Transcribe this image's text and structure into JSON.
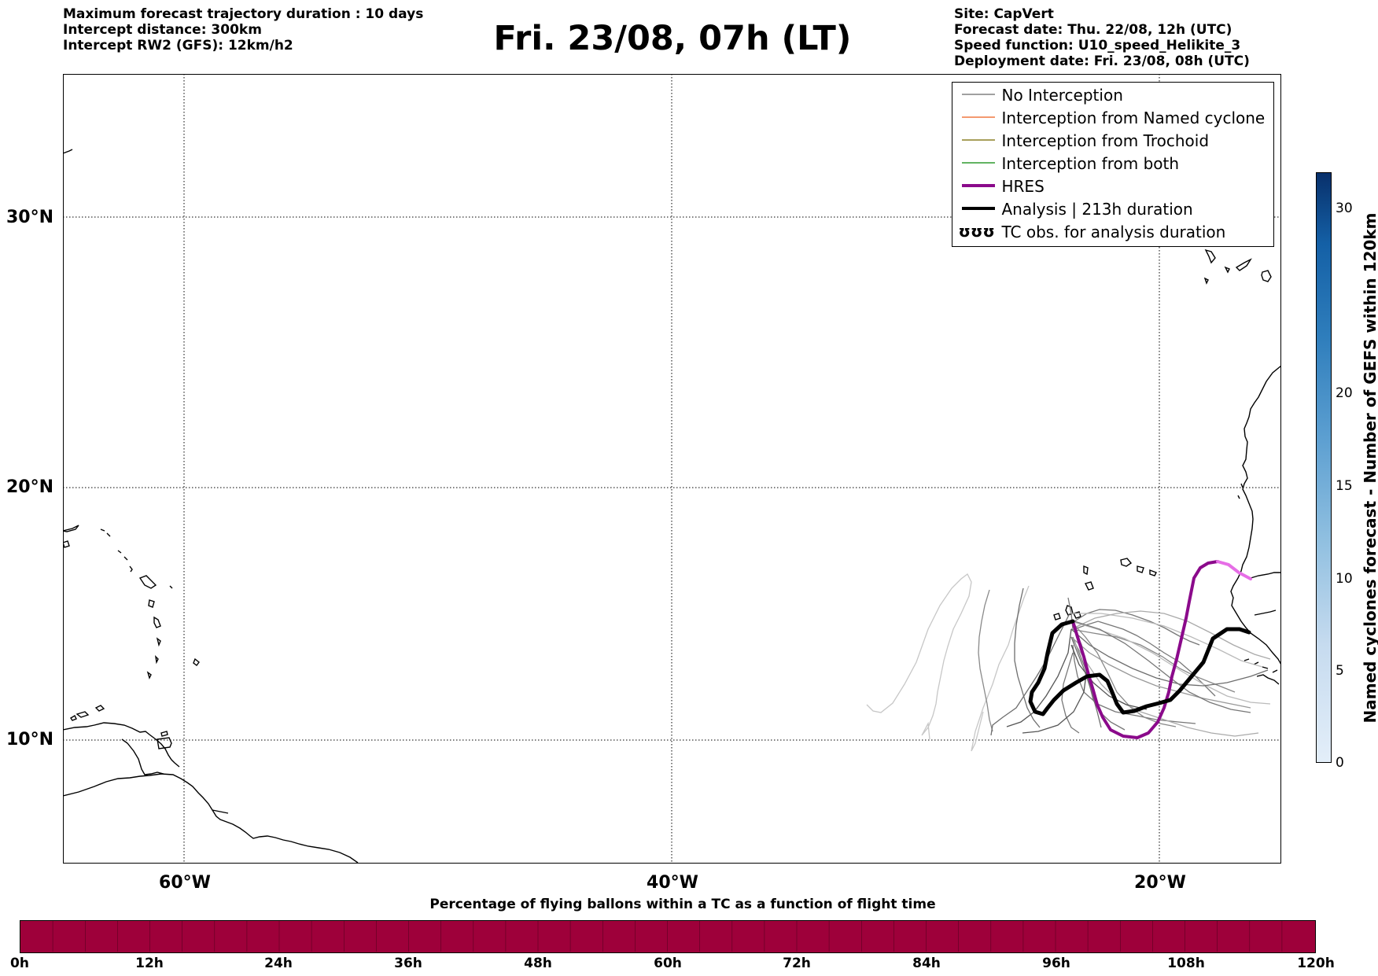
{
  "header_left": [
    "Maximum forecast trajectory duration : 10 days",
    "Intercept distance: 300km",
    "Intercept RW2 (GFS):  12km/h2"
  ],
  "title": "Fri. 23/08, 07h (LT)",
  "header_right": [
    "Site: CapVert",
    "Forecast date: Thu. 22/08, 12h (UTC)",
    "Speed function: U10_speed_Helikite_3",
    "Deployment date: Fri. 23/08, 08h (UTC)"
  ],
  "map": {
    "lat_labels": [
      "30°N",
      "20°N",
      "10°N"
    ],
    "lon_labels": [
      "60°W",
      "40°W",
      "20°W"
    ],
    "gridline_style": "dotted",
    "extent": {
      "lon_min": -65,
      "lon_max": -15,
      "lat_min": 5.4,
      "lat_max": 35.3
    }
  },
  "legend": [
    {
      "label": "No Interception",
      "color": "#808080",
      "style": "thin-line"
    },
    {
      "label": "Interception from Named cyclone",
      "color": "#f07840",
      "style": "thin-line"
    },
    {
      "label": "Interception from Trochoid",
      "color": "#8c8026",
      "style": "thin-line"
    },
    {
      "label": "Interception from both",
      "color": "#2e9a2e",
      "style": "thin-line"
    },
    {
      "label": "HRES",
      "color": "#8b0a8b",
      "style": "thick-line"
    },
    {
      "label": "Analysis | 213h duration",
      "color": "#000000",
      "style": "thick-line"
    },
    {
      "label": "TC obs. for analysis duration",
      "color": "#000000",
      "style": "tc-symbols",
      "symbol": "ʊʊʊ"
    }
  ],
  "colorbar_right": {
    "label": "Named cyclones forecast - Number of GEFS within 120km",
    "ticks": [
      "0",
      "5",
      "10",
      "15",
      "20",
      "30"
    ],
    "min": 0,
    "max": 32,
    "colormap": "Blues"
  },
  "colorbar_bottom": {
    "label": "Percentage of flying ballons within a TC as a function of flight time",
    "ticks": [
      "0h",
      "12h",
      "24h",
      "36h",
      "48h",
      "60h",
      "72h",
      "84h",
      "96h",
      "108h",
      "120h"
    ],
    "fill_color": "#9e003a"
  }
}
